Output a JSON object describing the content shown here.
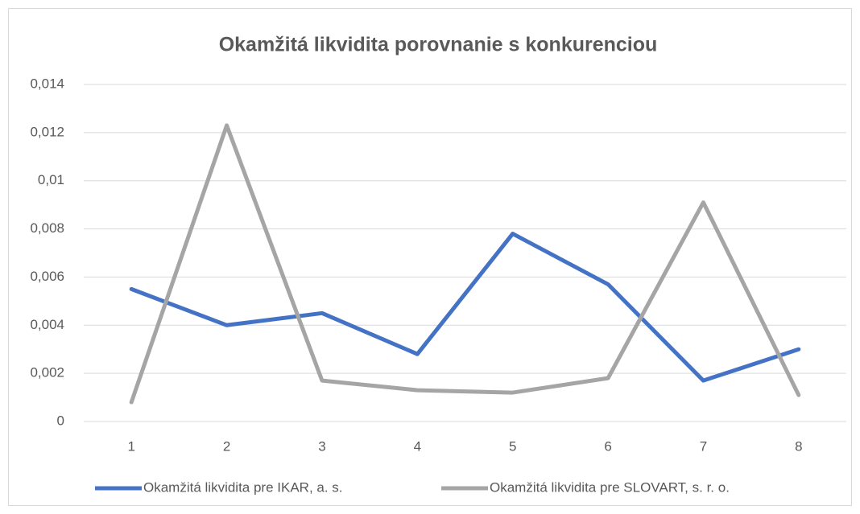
{
  "chart_data": {
    "type": "line",
    "title": "Okamžitá likvidita porovnanie s konkurenciou",
    "categories": [
      "1",
      "2",
      "3",
      "4",
      "5",
      "6",
      "7",
      "8"
    ],
    "series": [
      {
        "name": "Okamžitá likvidita pre IKAR, a. s.",
        "color": "#4472c4",
        "values": [
          0.0055,
          0.004,
          0.0045,
          0.0028,
          0.0078,
          0.0057,
          0.0017,
          0.003
        ]
      },
      {
        "name": "Okamžitá likvidita pre SLOVART, s. r. o.",
        "color": "#a5a5a5",
        "values": [
          0.0008,
          0.0123,
          0.0017,
          0.0013,
          0.0012,
          0.0018,
          0.0091,
          0.0011
        ]
      }
    ],
    "ylim": [
      0,
      0.014
    ],
    "yticks": [
      0,
      {
        "value": 0.002,
        "label": "0,002"
      },
      {
        "value": 0.004,
        "label": "0,004"
      },
      {
        "value": 0.006,
        "label": "0,006"
      },
      {
        "value": 0.008,
        "label": "0,008"
      },
      {
        "value": 0.01,
        "label": "0,01"
      },
      {
        "value": 0.012,
        "label": "0,012"
      },
      {
        "value": 0.014,
        "label": "0,014"
      }
    ],
    "grid": true,
    "legend": "bottom"
  }
}
